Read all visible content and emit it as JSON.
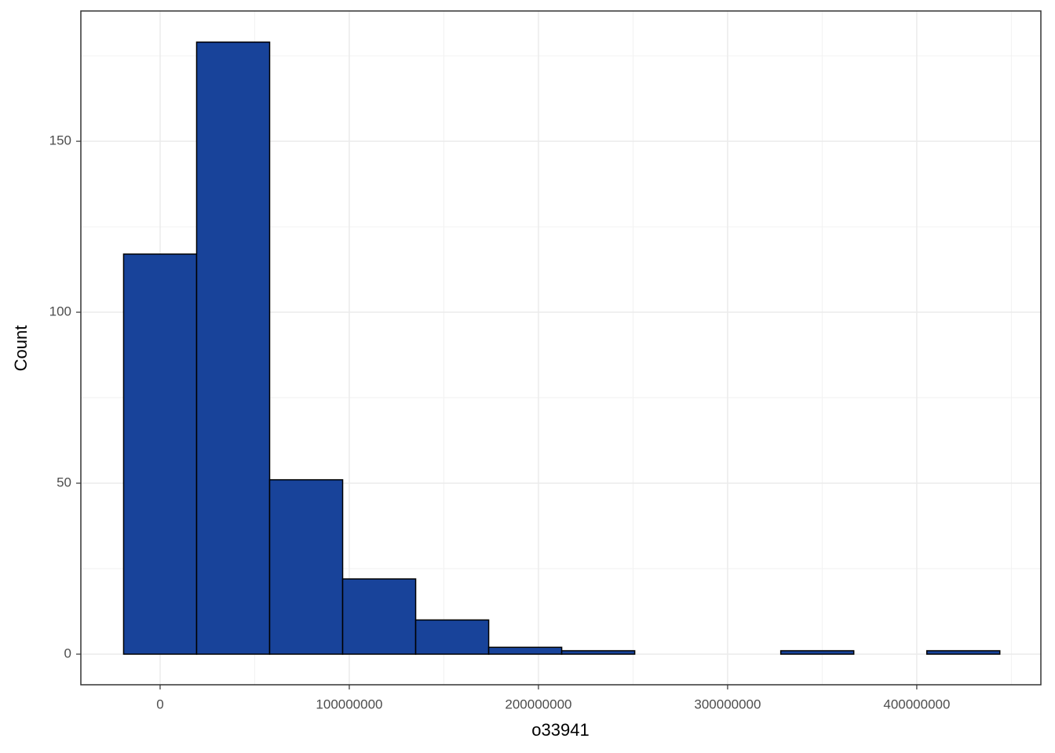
{
  "chart_data": {
    "type": "histogram",
    "x_label": "o33941",
    "y_label": "Count",
    "bins": [
      -19300000,
      19300000,
      57900000,
      96500000,
      135100000,
      173700000,
      212300000,
      250900000,
      289500000,
      328100000,
      366700000,
      405300000,
      443900000
    ],
    "counts": [
      117,
      179,
      51,
      22,
      10,
      2,
      1,
      0,
      0,
      1,
      0,
      1
    ],
    "color": "#18439a",
    "edge_color": "#000000",
    "xlim": [
      -41900000,
      465600000
    ],
    "xticks": [
      0,
      100000000,
      200000000,
      300000000,
      400000000
    ],
    "ylim": [
      -8.95,
      188.1
    ],
    "yticks": [
      0,
      50,
      100,
      150
    ],
    "grid": true
  }
}
